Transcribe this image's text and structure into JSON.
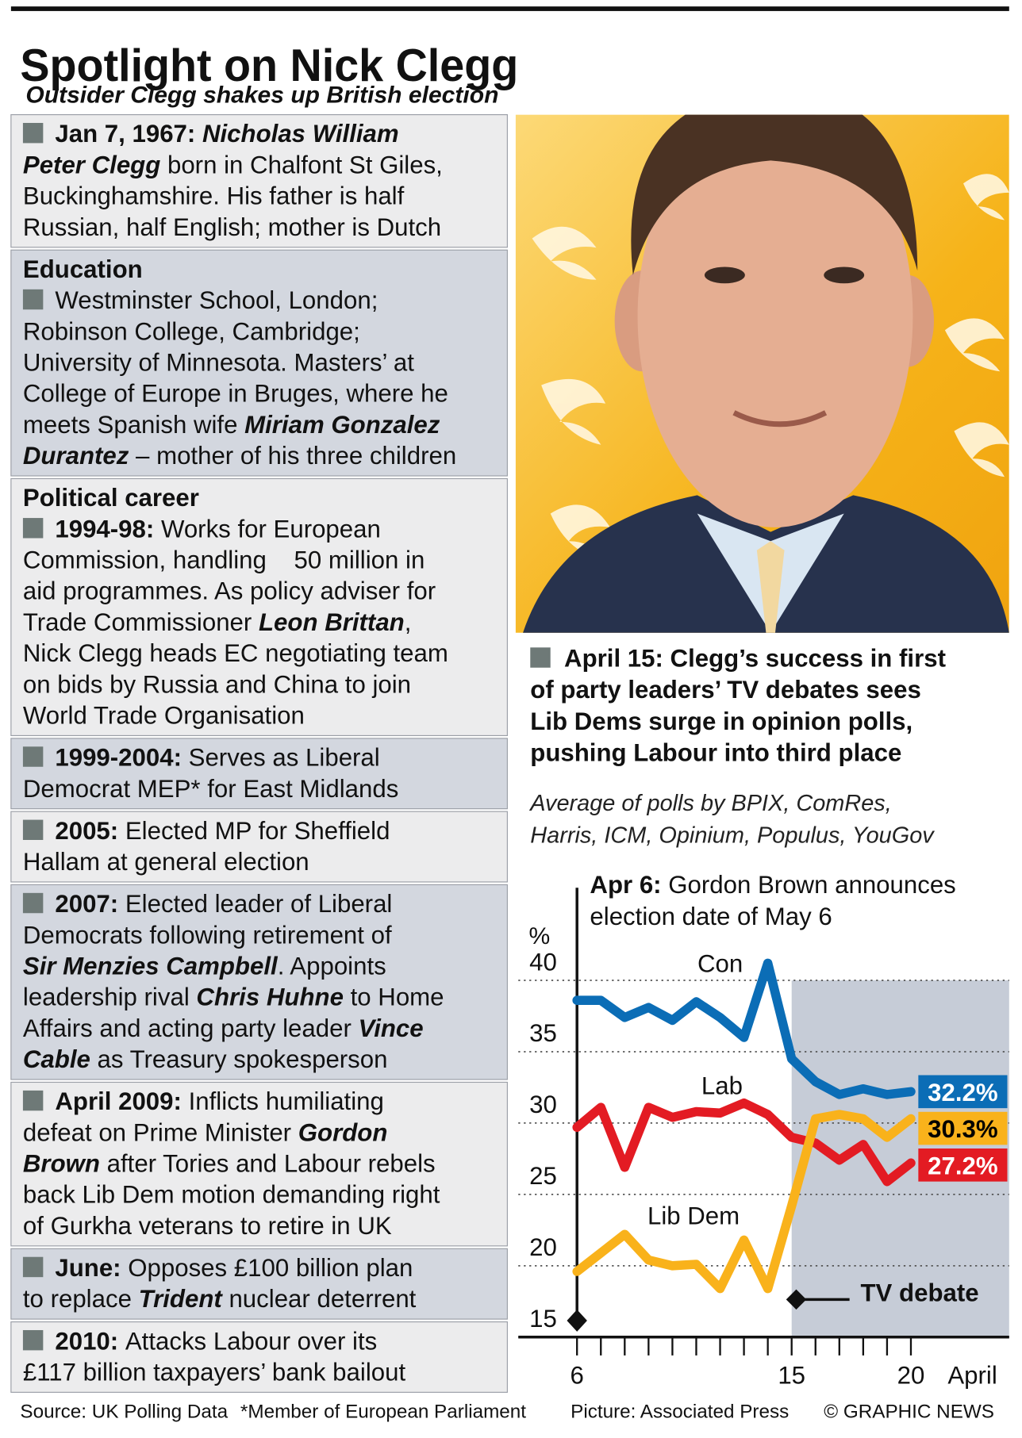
{
  "header": {
    "title": "Spotlight on Nick Clegg",
    "subtitle": "Outsider Clegg shakes up British election"
  },
  "profile": {
    "sections": [
      {
        "lines": [
          [
            {
              "text": "Jan 7, 1967: ",
              "style": "bold"
            },
            {
              "text": "Nicholas William",
              "style": "bold-italic"
            }
          ],
          [
            {
              "text": "Peter Clegg",
              "style": "bold-italic"
            },
            {
              "text": " born in Chalfont St Giles,"
            }
          ],
          [
            {
              "text": "Buckinghamshire. His father is half"
            }
          ],
          [
            {
              "text": "Russian, half English; mother is Dutch"
            }
          ]
        ]
      },
      {
        "heading": "Education",
        "lines": [
          [
            {
              "text": "Westminster School, London;"
            }
          ],
          [
            {
              "text": "Robinson College, Cambridge;"
            }
          ],
          [
            {
              "text": "University of Minnesota. Masters’ at"
            }
          ],
          [
            {
              "text": "College of Europe in Bruges, where he"
            }
          ],
          [
            {
              "text": "meets Spanish wife "
            },
            {
              "text": "Miriam Gonzalez",
              "style": "bold-italic"
            }
          ],
          [
            {
              "text": "Durantez",
              "style": "bold-italic"
            },
            {
              "text": " – mother of his three children"
            }
          ]
        ]
      },
      {
        "heading": "Political career",
        "lines": [
          [
            {
              "text": "1994-98: ",
              "style": "bold"
            },
            {
              "text": "Works for European"
            }
          ],
          [
            {
              "text": "Commission, handling    50 million in"
            }
          ],
          [
            {
              "text": "aid programmes. As policy adviser for"
            }
          ],
          [
            {
              "text": "Trade Commissioner "
            },
            {
              "text": "Leon Brittan",
              "style": "bold-italic"
            },
            {
              "text": ","
            }
          ],
          [
            {
              "text": "Nick Clegg heads EC negotiating team"
            }
          ],
          [
            {
              "text": "on bids by Russia and China to join"
            }
          ],
          [
            {
              "text": "World Trade Organisation"
            }
          ]
        ]
      },
      {
        "lines": [
          [
            {
              "text": "1999-2004: ",
              "style": "bold"
            },
            {
              "text": "Serves as Liberal"
            }
          ],
          [
            {
              "text": "Democrat MEP* for East Midlands"
            }
          ]
        ]
      },
      {
        "lines": [
          [
            {
              "text": "2005: ",
              "style": "bold"
            },
            {
              "text": "Elected MP for Sheffield"
            }
          ],
          [
            {
              "text": "Hallam at general election"
            }
          ]
        ]
      },
      {
        "lines": [
          [
            {
              "text": "2007: ",
              "style": "bold"
            },
            {
              "text": "Elected leader of Liberal"
            }
          ],
          [
            {
              "text": "Democrats following retirement of"
            }
          ],
          [
            {
              "text": "Sir Menzies Campbell",
              "style": "bold-italic"
            },
            {
              "text": ". Appoints"
            }
          ],
          [
            {
              "text": "leadership rival "
            },
            {
              "text": "Chris Huhne",
              "style": "bold-italic"
            },
            {
              "text": " to Home"
            }
          ],
          [
            {
              "text": "Affairs and acting party leader "
            },
            {
              "text": "Vince",
              "style": "bold-italic"
            }
          ],
          [
            {
              "text": "Cable",
              "style": "bold-italic"
            },
            {
              "text": " as Treasury spokesperson"
            }
          ]
        ]
      },
      {
        "lines": [
          [
            {
              "text": "April 2009: ",
              "style": "bold"
            },
            {
              "text": "Inflicts humiliating"
            }
          ],
          [
            {
              "text": "defeat on Prime Minister "
            },
            {
              "text": "Gordon",
              "style": "bold-italic"
            }
          ],
          [
            {
              "text": "Brown",
              "style": "bold-italic"
            },
            {
              "text": " after Tories and Labour rebels"
            }
          ],
          [
            {
              "text": "back Lib Dem motion demanding right"
            }
          ],
          [
            {
              "text": "of Gurkha veterans to retire in UK"
            }
          ]
        ]
      },
      {
        "lines": [
          [
            {
              "text": "June: ",
              "style": "bold"
            },
            {
              "text": "Opposes £100 billion plan"
            }
          ],
          [
            {
              "text": "to replace "
            },
            {
              "text": "Trident",
              "style": "bold-italic"
            },
            {
              "text": " nuclear deterrent"
            }
          ]
        ]
      },
      {
        "lines": [
          [
            {
              "text": "2010: ",
              "style": "bold"
            },
            {
              "text": "Attacks Labour over its"
            }
          ],
          [
            {
              "text": "£117 billion taxpayers’ bank bailout"
            }
          ]
        ]
      }
    ]
  },
  "poll_note": {
    "headline": [
      "April 15: Clegg’s success in first",
      "of party leaders’ TV debates sees",
      "Lib Dems surge in opinion polls,",
      "pushing Labour into third place"
    ],
    "source": [
      "Average of polls by BPIX, ComRes,",
      "Harris, ICM, Opinium, Populus, YouGov"
    ]
  },
  "chart_data": {
    "type": "line",
    "x": [
      6,
      7,
      8,
      9,
      10,
      11,
      12,
      13,
      14,
      15,
      16,
      17,
      18,
      19,
      20
    ],
    "series": [
      {
        "name": "Con",
        "color": "#0b6db6",
        "label_color": "#ffffff",
        "values": [
          38.6,
          38.6,
          37.4,
          38.1,
          37.2,
          38.5,
          37.4,
          36.0,
          41.2,
          34.5,
          32.9,
          32.0,
          32.4,
          32.0,
          32.2
        ],
        "value_labels": [
          null,
          null,
          null,
          null,
          null,
          null,
          null,
          null,
          null,
          null,
          null,
          null,
          null,
          null,
          "32.2%"
        ]
      },
      {
        "name": "Lab",
        "color": "#e31b23",
        "label_color": "#ffffff",
        "values": [
          29.7,
          31.1,
          26.9,
          31.1,
          30.4,
          30.8,
          30.7,
          31.4,
          30.6,
          29.0,
          28.6,
          27.4,
          28.5,
          25.9,
          27.2
        ],
        "value_labels": [
          null,
          null,
          null,
          null,
          null,
          null,
          null,
          null,
          null,
          null,
          null,
          null,
          null,
          null,
          "27.2%"
        ]
      },
      {
        "name": "Lib Dem",
        "color": "#f9b21b",
        "label_color": "#000000",
        "values": [
          19.6,
          20.9,
          22.2,
          20.4,
          20.0,
          20.1,
          18.4,
          21.8,
          18.4,
          24.2,
          30.3,
          30.6,
          30.3,
          29.0,
          30.3
        ],
        "value_labels": [
          null,
          null,
          null,
          null,
          null,
          null,
          null,
          null,
          null,
          null,
          null,
          null,
          null,
          null,
          "30.3%"
        ]
      }
    ],
    "ylabel": "%",
    "ylim": [
      15,
      40
    ],
    "yticks": [
      15,
      20,
      25,
      30,
      35,
      40
    ],
    "xlim": [
      3.54,
      24.12
    ],
    "xticks": [
      6,
      15,
      20
    ],
    "xminorticks": [
      6,
      7,
      8,
      9,
      10,
      11,
      12,
      13,
      14,
      15,
      16,
      17,
      18,
      19,
      20
    ],
    "xlabel": "April",
    "grid": true,
    "shade_from": 15,
    "annotations": [
      {
        "x": 6,
        "lines": [
          [
            {
              "text": "Apr 6: ",
              "style": "bold"
            },
            {
              "text": "Gordon Brown announces"
            }
          ],
          [
            {
              "text": "election date of May 6"
            }
          ]
        ]
      },
      {
        "x": 15,
        "lines": [
          [
            {
              "text": "TV debate",
              "style": "bold"
            }
          ]
        ]
      }
    ]
  },
  "footer": [
    "Source: UK Polling Data",
    "*Member of European Parliament",
    "Picture: Associated Press",
    "© GRAPHIC NEWS"
  ]
}
